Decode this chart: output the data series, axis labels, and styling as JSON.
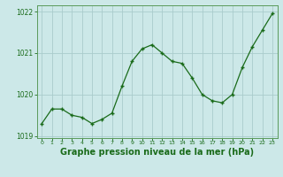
{
  "x": [
    0,
    1,
    2,
    3,
    4,
    5,
    6,
    7,
    8,
    9,
    10,
    11,
    12,
    13,
    14,
    15,
    16,
    17,
    18,
    19,
    20,
    21,
    22,
    23
  ],
  "y": [
    1019.3,
    1019.65,
    1019.65,
    1019.5,
    1019.45,
    1019.3,
    1019.4,
    1019.55,
    1020.2,
    1020.8,
    1021.1,
    1021.2,
    1021.0,
    1020.8,
    1020.75,
    1020.4,
    1020.0,
    1019.85,
    1019.8,
    1020.0,
    1020.65,
    1021.15,
    1021.55,
    1021.95
  ],
  "line_color": "#1a6b1a",
  "marker_color": "#1a6b1a",
  "bg_color": "#cce8e8",
  "grid_color": "#aacccc",
  "axis_label_color": "#1a6b1a",
  "tick_color": "#1a6b1a",
  "spine_color": "#5a9a5a",
  "xlabel": "Graphe pression niveau de la mer (hPa)",
  "ylim": [
    1018.95,
    1022.15
  ],
  "yticks": [
    1019,
    1020,
    1021,
    1022
  ],
  "xticks": [
    0,
    1,
    2,
    3,
    4,
    5,
    6,
    7,
    8,
    9,
    10,
    11,
    12,
    13,
    14,
    15,
    16,
    17,
    18,
    19,
    20,
    21,
    22,
    23
  ]
}
